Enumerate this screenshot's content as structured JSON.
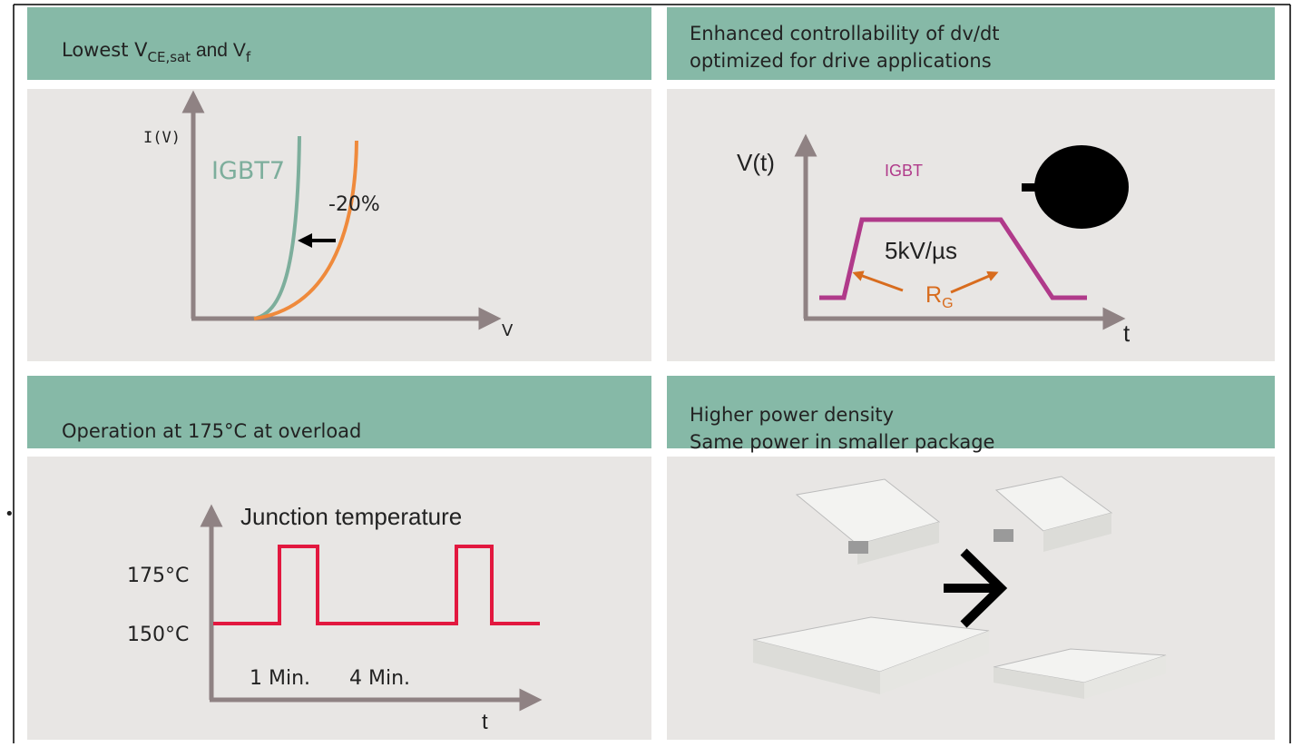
{
  "panels": [
    {
      "title": [
        "Lowest  V",
        "CE,sat",
        " and V",
        "f"
      ],
      "labels": {
        "y_axis": "I(V)",
        "curve": "IGBT7",
        "reduction": "-20%",
        "x_axis": "V"
      }
    },
    {
      "title": [
        "Enhanced controllability of dv/dt",
        "optimized for drive applications"
      ],
      "labels": {
        "y_axis": "V(t)",
        "curve": "IGBT",
        "slope": "5kV/µs",
        "resistor": [
          "R",
          "G"
        ],
        "x_axis": "t"
      }
    },
    {
      "title": [
        "Operation at 175°C at overload"
      ],
      "bullet": "•",
      "labels": {
        "y_axis": "Junction temperature",
        "high": "175°C",
        "low": "150°C",
        "pulse": "1 Min.",
        "pause": "4 Min.",
        "x_axis": "t"
      }
    },
    {
      "title": [
        "Higher power density",
        "Same power in smaller package"
      ]
    }
  ]
}
